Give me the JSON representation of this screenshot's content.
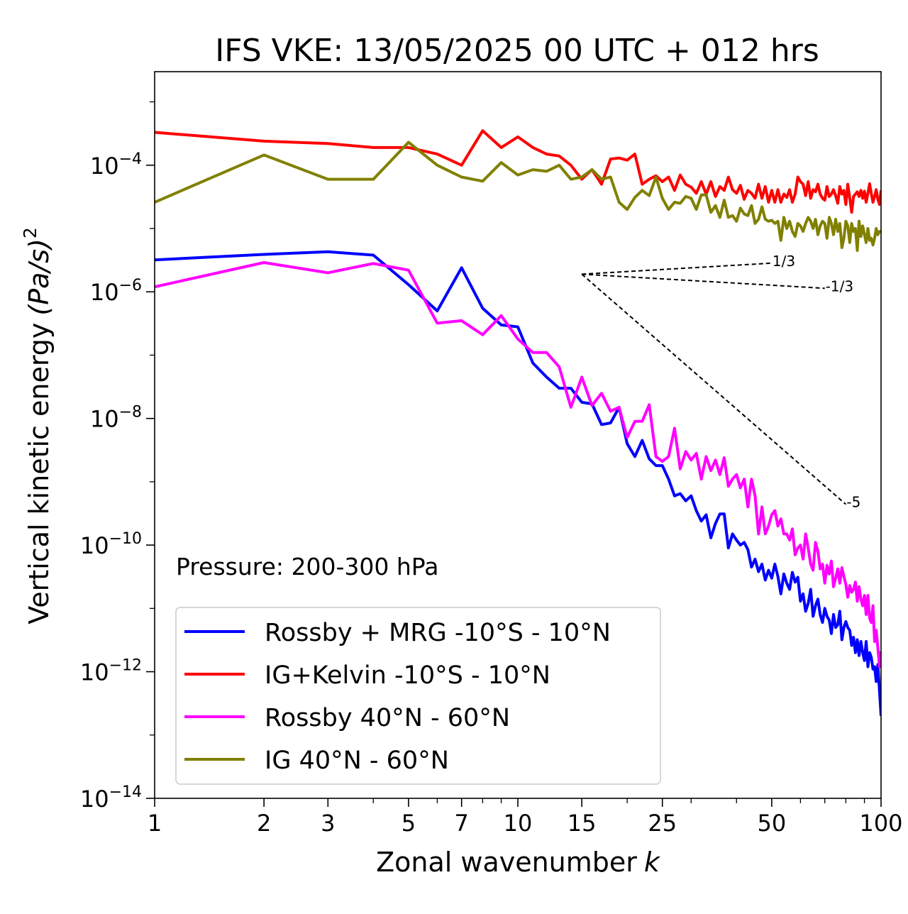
{
  "chart_data": {
    "type": "line",
    "title": "IFS VKE: 13/05/2025 00 UTC + 012 hrs",
    "xlabel": "Zonal wavenumber",
    "xlabel_symbol": "k",
    "ylabel": "Vertical kinetic energy",
    "ylabel_units": "(Pa/s)",
    "ylabel_power": "2",
    "xscale": "log",
    "yscale": "log",
    "xlim": [
      1,
      100
    ],
    "ylim": [
      1e-14,
      0.003
    ],
    "xticks": [
      {
        "value": 1,
        "label": "1"
      },
      {
        "value": 2,
        "label": "2"
      },
      {
        "value": 3,
        "label": "3"
      },
      {
        "value": 5,
        "label": "5"
      },
      {
        "value": 7,
        "label": "7"
      },
      {
        "value": 10,
        "label": "10"
      },
      {
        "value": 15,
        "label": "15"
      },
      {
        "value": 25,
        "label": "25"
      },
      {
        "value": 50,
        "label": "50"
      },
      {
        "value": 100,
        "label": "100"
      }
    ],
    "yticks": [
      {
        "exp": -4,
        "base": "10",
        "power": "−4"
      },
      {
        "exp": -6,
        "base": "10",
        "power": "−6"
      },
      {
        "exp": -8,
        "base": "10",
        "power": "−8"
      },
      {
        "exp": -10,
        "base": "10",
        "power": "−10"
      },
      {
        "exp": -12,
        "base": "10",
        "power": "−12"
      },
      {
        "exp": -14,
        "base": "10",
        "power": "−14"
      }
    ],
    "annotation": "Pressure: 200-300 hPa",
    "grid": false,
    "legend_position": "bottom-left",
    "series": [
      {
        "name": "Rossby + MRG -10°S - 10°N",
        "color": "#0000ff",
        "x": [
          1,
          2,
          3,
          4,
          5,
          6,
          7,
          8,
          9,
          10,
          11,
          12,
          13,
          14,
          15,
          16,
          17,
          18,
          19,
          20,
          21,
          22,
          23,
          24,
          25,
          26,
          27,
          28,
          29,
          30,
          31,
          32,
          33,
          34,
          35,
          36,
          37,
          38,
          39,
          40,
          41,
          42,
          43,
          44,
          45,
          46,
          47,
          48,
          49,
          50,
          51,
          52,
          53,
          54,
          55,
          56,
          57,
          58,
          59,
          60,
          61,
          62,
          63,
          64,
          65,
          66,
          67,
          68,
          69,
          70,
          71,
          72,
          73,
          74,
          75,
          76,
          77,
          78,
          79,
          80,
          81,
          82,
          83,
          84,
          85,
          86,
          87,
          88,
          89,
          90,
          91,
          92,
          93,
          94,
          95,
          96,
          97,
          98,
          99,
          100
        ],
        "y": [
          3.2e-06,
          3.9e-06,
          4.3e-06,
          3.8e-06,
          1.3e-06,
          5e-07,
          2.4e-06,
          5.5e-07,
          3e-07,
          2.8e-07,
          7.5e-08,
          4.5e-08,
          3e-08,
          3e-08,
          1.8e-08,
          1.7e-08,
          8e-09,
          8.5e-09,
          1.5e-08,
          4e-09,
          2.5e-09,
          4.5e-09,
          2.3e-09,
          1.8e-09,
          1.8e-09,
          1.1e-09,
          6e-10,
          6.5e-10,
          5e-10,
          6e-10,
          3.5e-10,
          2.4e-10,
          3e-10,
          1.3e-10,
          2.2e-10,
          3.1e-10,
          3.1e-10,
          9e-11,
          1.5e-10,
          1.2e-10,
          1e-10,
          1.1e-10,
          8.5e-11,
          4.5e-11,
          6e-11,
          3.8e-11,
          5e-11,
          2.8e-11,
          4e-11,
          3e-11,
          5e-11,
          3.2e-11,
          1.7e-11,
          3.5e-11,
          2.5e-11,
          2e-11,
          3.7e-11,
          2.6e-11,
          3.1e-11,
          1.3e-11,
          1.7e-11,
          9e-12,
          1.2e-11,
          2e-11,
          7.5e-12,
          1.1e-11,
          1.4e-11,
          8e-12,
          6e-12,
          1e-11,
          7.5e-12,
          6.5e-12,
          4e-12,
          8e-12,
          5e-12,
          5.5e-12,
          9e-12,
          3.2e-12,
          5e-12,
          6.2e-12,
          5e-12,
          4.5e-12,
          2.6e-12,
          3.5e-12,
          2e-12,
          3.2e-12,
          1.8e-12,
          3e-12,
          2e-12,
          1.5e-12,
          3e-12,
          1.2e-12,
          2e-12,
          1.7e-12,
          1.1e-12,
          1.2e-12,
          7e-13,
          1.3e-12,
          5e-13,
          2e-13
        ]
      },
      {
        "name": "IG+Kelvin -10°S - 10°N",
        "color": "#ff0000",
        "x": [
          1,
          2,
          3,
          4,
          5,
          6,
          7,
          8,
          9,
          10,
          11,
          12,
          13,
          14,
          15,
          16,
          17,
          18,
          19,
          20,
          21,
          22,
          23,
          24,
          25,
          26,
          27,
          28,
          29,
          30,
          31,
          32,
          33,
          34,
          35,
          36,
          37,
          38,
          39,
          40,
          41,
          42,
          43,
          44,
          45,
          46,
          47,
          48,
          49,
          50,
          51,
          52,
          53,
          54,
          55,
          56,
          57,
          58,
          59,
          60,
          61,
          62,
          63,
          64,
          65,
          66,
          67,
          68,
          69,
          70,
          71,
          72,
          73,
          74,
          75,
          76,
          77,
          78,
          79,
          80,
          81,
          82,
          83,
          84,
          85,
          86,
          87,
          88,
          89,
          90,
          91,
          92,
          93,
          94,
          95,
          96,
          97,
          98,
          99,
          100
        ],
        "y": [
          0.00033,
          0.00024,
          0.00022,
          0.00019,
          0.00019,
          0.00015,
          0.0001,
          0.00035,
          0.00019,
          0.00028,
          0.00019,
          0.00015,
          0.00014,
          0.0001,
          6e-05,
          8.5e-05,
          5e-05,
          0.000125,
          0.00013,
          0.00012,
          0.00015,
          5e-05,
          6e-05,
          6.8e-05,
          5.5e-05,
          6.5e-05,
          4e-05,
          7e-05,
          5e-05,
          4.5e-05,
          3.6e-05,
          5.5e-05,
          3.5e-05,
          5.5e-05,
          3.2e-05,
          4.6e-05,
          4e-05,
          6.5e-05,
          4.1e-05,
          3.6e-05,
          4.8e-05,
          2.9e-05,
          4e-05,
          3.6e-05,
          3e-05,
          5e-05,
          3e-05,
          4.6e-05,
          2.6e-05,
          4e-05,
          2.6e-05,
          4.1e-05,
          2.6e-05,
          3.5e-05,
          3.1e-05,
          4.1e-05,
          2.6e-05,
          3.5e-05,
          6.5e-05,
          5.5e-05,
          5e-05,
          3.3e-05,
          5.5e-05,
          3e-05,
          4.1e-05,
          3.8e-05,
          5e-05,
          3.5e-05,
          3e-05,
          2.8e-05,
          4.6e-05,
          3.2e-05,
          3.5e-05,
          4.1e-05,
          3.3e-05,
          2.5e-05,
          4.6e-05,
          3.5e-05,
          4e-05,
          2.4e-05,
          5e-05,
          3e-05,
          1.8e-05,
          3.2e-05,
          3.5e-05,
          3.8e-05,
          3.2e-05,
          4e-05,
          3e-05,
          3.9e-05,
          2.6e-05,
          3.6e-05,
          5.1e-05,
          3.6e-05,
          2.6e-05,
          3.2e-05,
          4.1e-05,
          2.9e-05,
          2.4e-05,
          4e-05
        ]
      },
      {
        "name": "Rossby 40°N - 60°N",
        "color": "#ff00ff",
        "x": [
          1,
          2,
          3,
          4,
          5,
          6,
          7,
          8,
          9,
          10,
          11,
          12,
          13,
          14,
          15,
          16,
          17,
          18,
          19,
          20,
          21,
          22,
          23,
          24,
          25,
          26,
          27,
          28,
          29,
          30,
          31,
          32,
          33,
          34,
          35,
          36,
          37,
          38,
          39,
          40,
          41,
          42,
          43,
          44,
          45,
          46,
          47,
          48,
          49,
          50,
          51,
          52,
          53,
          54,
          55,
          56,
          57,
          58,
          59,
          60,
          61,
          62,
          63,
          64,
          65,
          66,
          67,
          68,
          69,
          70,
          71,
          72,
          73,
          74,
          75,
          76,
          77,
          78,
          79,
          80,
          81,
          82,
          83,
          84,
          85,
          86,
          87,
          88,
          89,
          90,
          91,
          92,
          93,
          94,
          95,
          96,
          97,
          98,
          99,
          100
        ],
        "y": [
          1.2e-06,
          2.9e-06,
          2e-06,
          2.8e-06,
          2.2e-06,
          3.2e-07,
          3.5e-07,
          2.1e-07,
          4.2e-07,
          1.8e-07,
          1.1e-07,
          1.1e-07,
          6.5e-08,
          1.5e-08,
          4.5e-08,
          1.6e-08,
          2.5e-08,
          1.3e-08,
          1.5e-08,
          5e-09,
          9e-09,
          9e-09,
          1.65e-08,
          2.5e-09,
          2.1e-09,
          2.5e-09,
          7e-09,
          1.6e-09,
          3e-09,
          2.2e-09,
          2.8e-09,
          1.1e-09,
          2.5e-09,
          1.5e-09,
          2.2e-09,
          1.3e-09,
          2.4e-09,
          8.5e-10,
          1.1e-09,
          1.3e-09,
          8e-10,
          1.1e-09,
          4e-10,
          1.1e-09,
          6e-10,
          1.5e-10,
          4e-10,
          1.5e-10,
          2e-10,
          3e-10,
          3.5e-10,
          2e-10,
          2.6e-10,
          1.5e-10,
          1.5e-10,
          1.2e-10,
          1.8e-10,
          7e-11,
          9e-11,
          1e-10,
          6e-11,
          1.5e-10,
          9e-11,
          5e-11,
          4e-11,
          1.1e-10,
          8e-11,
          4.2e-11,
          5e-11,
          2.5e-11,
          4.8e-11,
          3.5e-11,
          5.6e-11,
          2.2e-11,
          3e-11,
          4.2e-11,
          2.5e-11,
          4.4e-11,
          3.2e-11,
          2.4e-11,
          1.5e-11,
          2.3e-11,
          1.8e-11,
          2e-11,
          2.6e-11,
          1.3e-11,
          2.2e-11,
          1.4e-11,
          1.1e-11,
          1.6e-11,
          8e-12,
          1.6e-11,
          7e-12,
          6e-12,
          1.1e-11,
          3e-12,
          4.5e-12,
          2.4e-12,
          1.2e-12,
          2.1e-12
        ]
      },
      {
        "name": "IG 40°N - 60°N",
        "color": "#808000",
        "x": [
          1,
          2,
          3,
          4,
          5,
          6,
          7,
          8,
          9,
          10,
          11,
          12,
          13,
          14,
          15,
          16,
          17,
          18,
          19,
          20,
          21,
          22,
          23,
          24,
          25,
          26,
          27,
          28,
          29,
          30,
          31,
          32,
          33,
          34,
          35,
          36,
          37,
          38,
          39,
          40,
          41,
          42,
          43,
          44,
          45,
          46,
          47,
          48,
          49,
          50,
          51,
          52,
          53,
          54,
          55,
          56,
          57,
          58,
          59,
          60,
          61,
          62,
          63,
          64,
          65,
          66,
          67,
          68,
          69,
          70,
          71,
          72,
          73,
          74,
          75,
          76,
          77,
          78,
          79,
          80,
          81,
          82,
          83,
          84,
          85,
          86,
          87,
          88,
          89,
          90,
          91,
          92,
          93,
          94,
          95,
          96,
          97,
          98,
          99,
          100
        ],
        "y": [
          2.6e-05,
          0.000145,
          6e-05,
          6e-05,
          0.00023,
          0.0001,
          6.5e-05,
          5.6e-05,
          0.00011,
          7e-05,
          8.5e-05,
          8e-05,
          0.0001,
          6e-05,
          6.5e-05,
          8.5e-05,
          6e-05,
          6.5e-05,
          2.6e-05,
          2e-05,
          3.1e-05,
          4e-05,
          3.3e-05,
          6.5e-05,
          3e-05,
          2e-05,
          2.6e-05,
          2.5e-05,
          3.2e-05,
          3e-05,
          2e-05,
          3.4e-05,
          3.4e-05,
          1.8e-05,
          2.3e-05,
          1.5e-05,
          2.8e-05,
          1.5e-05,
          1.6e-05,
          1.3e-05,
          2.1e-05,
          1.7e-05,
          1.6e-05,
          2.3e-05,
          1.2e-05,
          1.4e-05,
          2.2e-05,
          1.4e-05,
          1.3e-05,
          1.35e-05,
          1.2e-05,
          1.3e-05,
          6.5e-06,
          1.5e-05,
          1e-05,
          1.3e-05,
          9e-06,
          7.5e-06,
          1.2e-05,
          1.1e-05,
          9e-06,
          1.2e-05,
          1.5e-05,
          1.3e-05,
          1e-05,
          1.4e-05,
          8e-06,
          1.1e-05,
          1.3e-05,
          1.2e-05,
          7e-06,
          1.5e-05,
          1.2e-05,
          8e-06,
          1.4e-05,
          9e-06,
          1.2e-05,
          5e-06,
          7e-06,
          1.3e-05,
          1.1e-05,
          6e-06,
          1.2e-05,
          9e-06,
          1e-05,
          4.5e-06,
          1.3e-05,
          7.5e-06,
          1.1e-05,
          8e-06,
          6e-06,
          1e-05,
          6.5e-06,
          7e-06,
          5.5e-06,
          7e-06,
          1e-05,
          8e-06,
          9e-06,
          9e-06
        ]
      }
    ],
    "reference_slopes": [
      {
        "label": "1/3",
        "slope": 0.3333,
        "x0": 15,
        "y0": 1.9e-06,
        "x1": 50
      },
      {
        "label": "-1/3",
        "slope": -0.3333,
        "x0": 15,
        "y0": 1.9e-06,
        "x1": 70
      },
      {
        "label": "-5",
        "slope": -5,
        "x0": 15,
        "y0": 1.9e-06,
        "x1": 80
      }
    ]
  }
}
